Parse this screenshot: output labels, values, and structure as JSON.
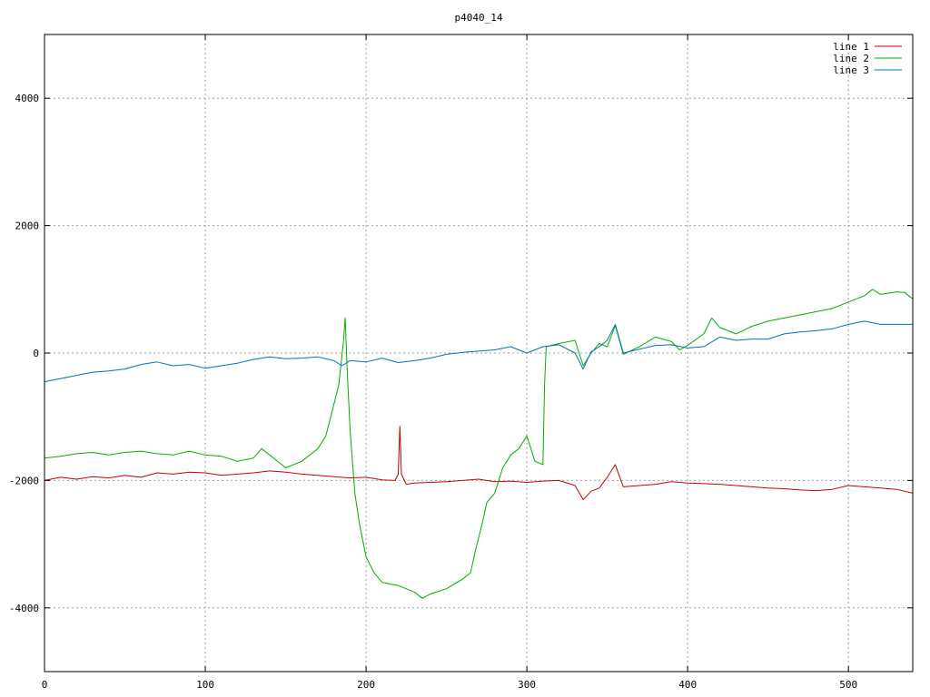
{
  "chart_data": {
    "type": "line",
    "title": "p4040_14",
    "xlabel": "",
    "ylabel": "",
    "xlim": [
      0,
      540
    ],
    "ylim": [
      -5000,
      5000
    ],
    "xticks": [
      0,
      100,
      200,
      300,
      400,
      500
    ],
    "yticks": [
      -4000,
      -2000,
      0,
      2000,
      4000
    ],
    "grid": true,
    "legend_position": "top-right",
    "series": [
      {
        "name": "line 1",
        "color": "#cc0000",
        "points": [
          [
            0,
            -2000
          ],
          [
            10,
            -1950
          ],
          [
            20,
            -1980
          ],
          [
            30,
            -1940
          ],
          [
            40,
            -1960
          ],
          [
            50,
            -1920
          ],
          [
            60,
            -1950
          ],
          [
            70,
            -1880
          ],
          [
            80,
            -1900
          ],
          [
            90,
            -1870
          ],
          [
            100,
            -1880
          ],
          [
            110,
            -1920
          ],
          [
            120,
            -1900
          ],
          [
            130,
            -1880
          ],
          [
            140,
            -1850
          ],
          [
            150,
            -1870
          ],
          [
            160,
            -1900
          ],
          [
            170,
            -1920
          ],
          [
            180,
            -1940
          ],
          [
            190,
            -1960
          ],
          [
            200,
            -1950
          ],
          [
            210,
            -1990
          ],
          [
            218,
            -2000
          ],
          [
            220,
            -1900
          ],
          [
            221,
            -1150
          ],
          [
            222,
            -1900
          ],
          [
            225,
            -2060
          ],
          [
            230,
            -2040
          ],
          [
            240,
            -2030
          ],
          [
            250,
            -2020
          ],
          [
            260,
            -2000
          ],
          [
            270,
            -1980
          ],
          [
            280,
            -2020
          ],
          [
            290,
            -2010
          ],
          [
            300,
            -2030
          ],
          [
            310,
            -2010
          ],
          [
            320,
            -2000
          ],
          [
            330,
            -2080
          ],
          [
            335,
            -2300
          ],
          [
            340,
            -2170
          ],
          [
            345,
            -2120
          ],
          [
            350,
            -1950
          ],
          [
            355,
            -1750
          ],
          [
            360,
            -2100
          ],
          [
            370,
            -2080
          ],
          [
            380,
            -2060
          ],
          [
            390,
            -2020
          ],
          [
            400,
            -2040
          ],
          [
            410,
            -2050
          ],
          [
            420,
            -2060
          ],
          [
            430,
            -2080
          ],
          [
            440,
            -2100
          ],
          [
            450,
            -2120
          ],
          [
            460,
            -2130
          ],
          [
            470,
            -2150
          ],
          [
            480,
            -2160
          ],
          [
            490,
            -2140
          ],
          [
            500,
            -2080
          ],
          [
            510,
            -2100
          ],
          [
            520,
            -2120
          ],
          [
            530,
            -2140
          ],
          [
            540,
            -2200
          ]
        ]
      },
      {
        "name": "line 2",
        "color": "#00b000",
        "points": [
          [
            0,
            -1650
          ],
          [
            10,
            -1620
          ],
          [
            20,
            -1580
          ],
          [
            30,
            -1560
          ],
          [
            40,
            -1600
          ],
          [
            50,
            -1560
          ],
          [
            60,
            -1540
          ],
          [
            70,
            -1580
          ],
          [
            80,
            -1600
          ],
          [
            90,
            -1540
          ],
          [
            100,
            -1600
          ],
          [
            110,
            -1620
          ],
          [
            120,
            -1700
          ],
          [
            130,
            -1650
          ],
          [
            135,
            -1500
          ],
          [
            140,
            -1600
          ],
          [
            150,
            -1800
          ],
          [
            160,
            -1700
          ],
          [
            170,
            -1500
          ],
          [
            175,
            -1300
          ],
          [
            180,
            -800
          ],
          [
            183,
            -500
          ],
          [
            186,
            200
          ],
          [
            187,
            550
          ],
          [
            188,
            -100
          ],
          [
            190,
            -1200
          ],
          [
            193,
            -2200
          ],
          [
            196,
            -2700
          ],
          [
            200,
            -3200
          ],
          [
            205,
            -3450
          ],
          [
            210,
            -3600
          ],
          [
            220,
            -3650
          ],
          [
            230,
            -3750
          ],
          [
            235,
            -3850
          ],
          [
            240,
            -3780
          ],
          [
            250,
            -3700
          ],
          [
            260,
            -3550
          ],
          [
            265,
            -3450
          ],
          [
            268,
            -3100
          ],
          [
            272,
            -2700
          ],
          [
            275,
            -2350
          ],
          [
            280,
            -2200
          ],
          [
            285,
            -1800
          ],
          [
            290,
            -1600
          ],
          [
            295,
            -1500
          ],
          [
            300,
            -1300
          ],
          [
            305,
            -1700
          ],
          [
            310,
            -1750
          ],
          [
            311,
            -500
          ],
          [
            312,
            100
          ],
          [
            320,
            150
          ],
          [
            330,
            200
          ],
          [
            335,
            -200
          ],
          [
            340,
            0
          ],
          [
            345,
            150
          ],
          [
            350,
            100
          ],
          [
            355,
            430
          ],
          [
            360,
            -20
          ],
          [
            370,
            100
          ],
          [
            380,
            250
          ],
          [
            390,
            180
          ],
          [
            395,
            50
          ],
          [
            400,
            120
          ],
          [
            410,
            300
          ],
          [
            415,
            550
          ],
          [
            420,
            400
          ],
          [
            430,
            300
          ],
          [
            440,
            420
          ],
          [
            450,
            500
          ],
          [
            460,
            550
          ],
          [
            470,
            600
          ],
          [
            480,
            650
          ],
          [
            490,
            700
          ],
          [
            500,
            800
          ],
          [
            510,
            900
          ],
          [
            515,
            1000
          ],
          [
            520,
            920
          ],
          [
            530,
            960
          ],
          [
            535,
            950
          ],
          [
            540,
            850
          ]
        ]
      },
      {
        "name": "line 3",
        "color": "#0070c8",
        "points": [
          [
            0,
            -450
          ],
          [
            10,
            -400
          ],
          [
            20,
            -350
          ],
          [
            30,
            -300
          ],
          [
            40,
            -280
          ],
          [
            50,
            -250
          ],
          [
            60,
            -180
          ],
          [
            70,
            -140
          ],
          [
            80,
            -200
          ],
          [
            90,
            -180
          ],
          [
            100,
            -240
          ],
          [
            110,
            -200
          ],
          [
            120,
            -160
          ],
          [
            130,
            -100
          ],
          [
            140,
            -60
          ],
          [
            150,
            -90
          ],
          [
            160,
            -80
          ],
          [
            170,
            -60
          ],
          [
            180,
            -120
          ],
          [
            185,
            -200
          ],
          [
            190,
            -120
          ],
          [
            200,
            -140
          ],
          [
            210,
            -80
          ],
          [
            220,
            -150
          ],
          [
            230,
            -120
          ],
          [
            240,
            -80
          ],
          [
            250,
            -20
          ],
          [
            260,
            10
          ],
          [
            270,
            30
          ],
          [
            280,
            50
          ],
          [
            290,
            100
          ],
          [
            300,
            0
          ],
          [
            310,
            100
          ],
          [
            320,
            130
          ],
          [
            330,
            0
          ],
          [
            335,
            -250
          ],
          [
            340,
            20
          ],
          [
            345,
            100
          ],
          [
            350,
            200
          ],
          [
            355,
            450
          ],
          [
            360,
            0
          ],
          [
            370,
            60
          ],
          [
            380,
            120
          ],
          [
            390,
            130
          ],
          [
            400,
            80
          ],
          [
            410,
            100
          ],
          [
            420,
            250
          ],
          [
            430,
            200
          ],
          [
            440,
            220
          ],
          [
            450,
            220
          ],
          [
            460,
            300
          ],
          [
            470,
            330
          ],
          [
            480,
            350
          ],
          [
            490,
            380
          ],
          [
            500,
            450
          ],
          [
            510,
            500
          ],
          [
            520,
            450
          ],
          [
            530,
            450
          ],
          [
            540,
            450
          ]
        ]
      }
    ]
  }
}
